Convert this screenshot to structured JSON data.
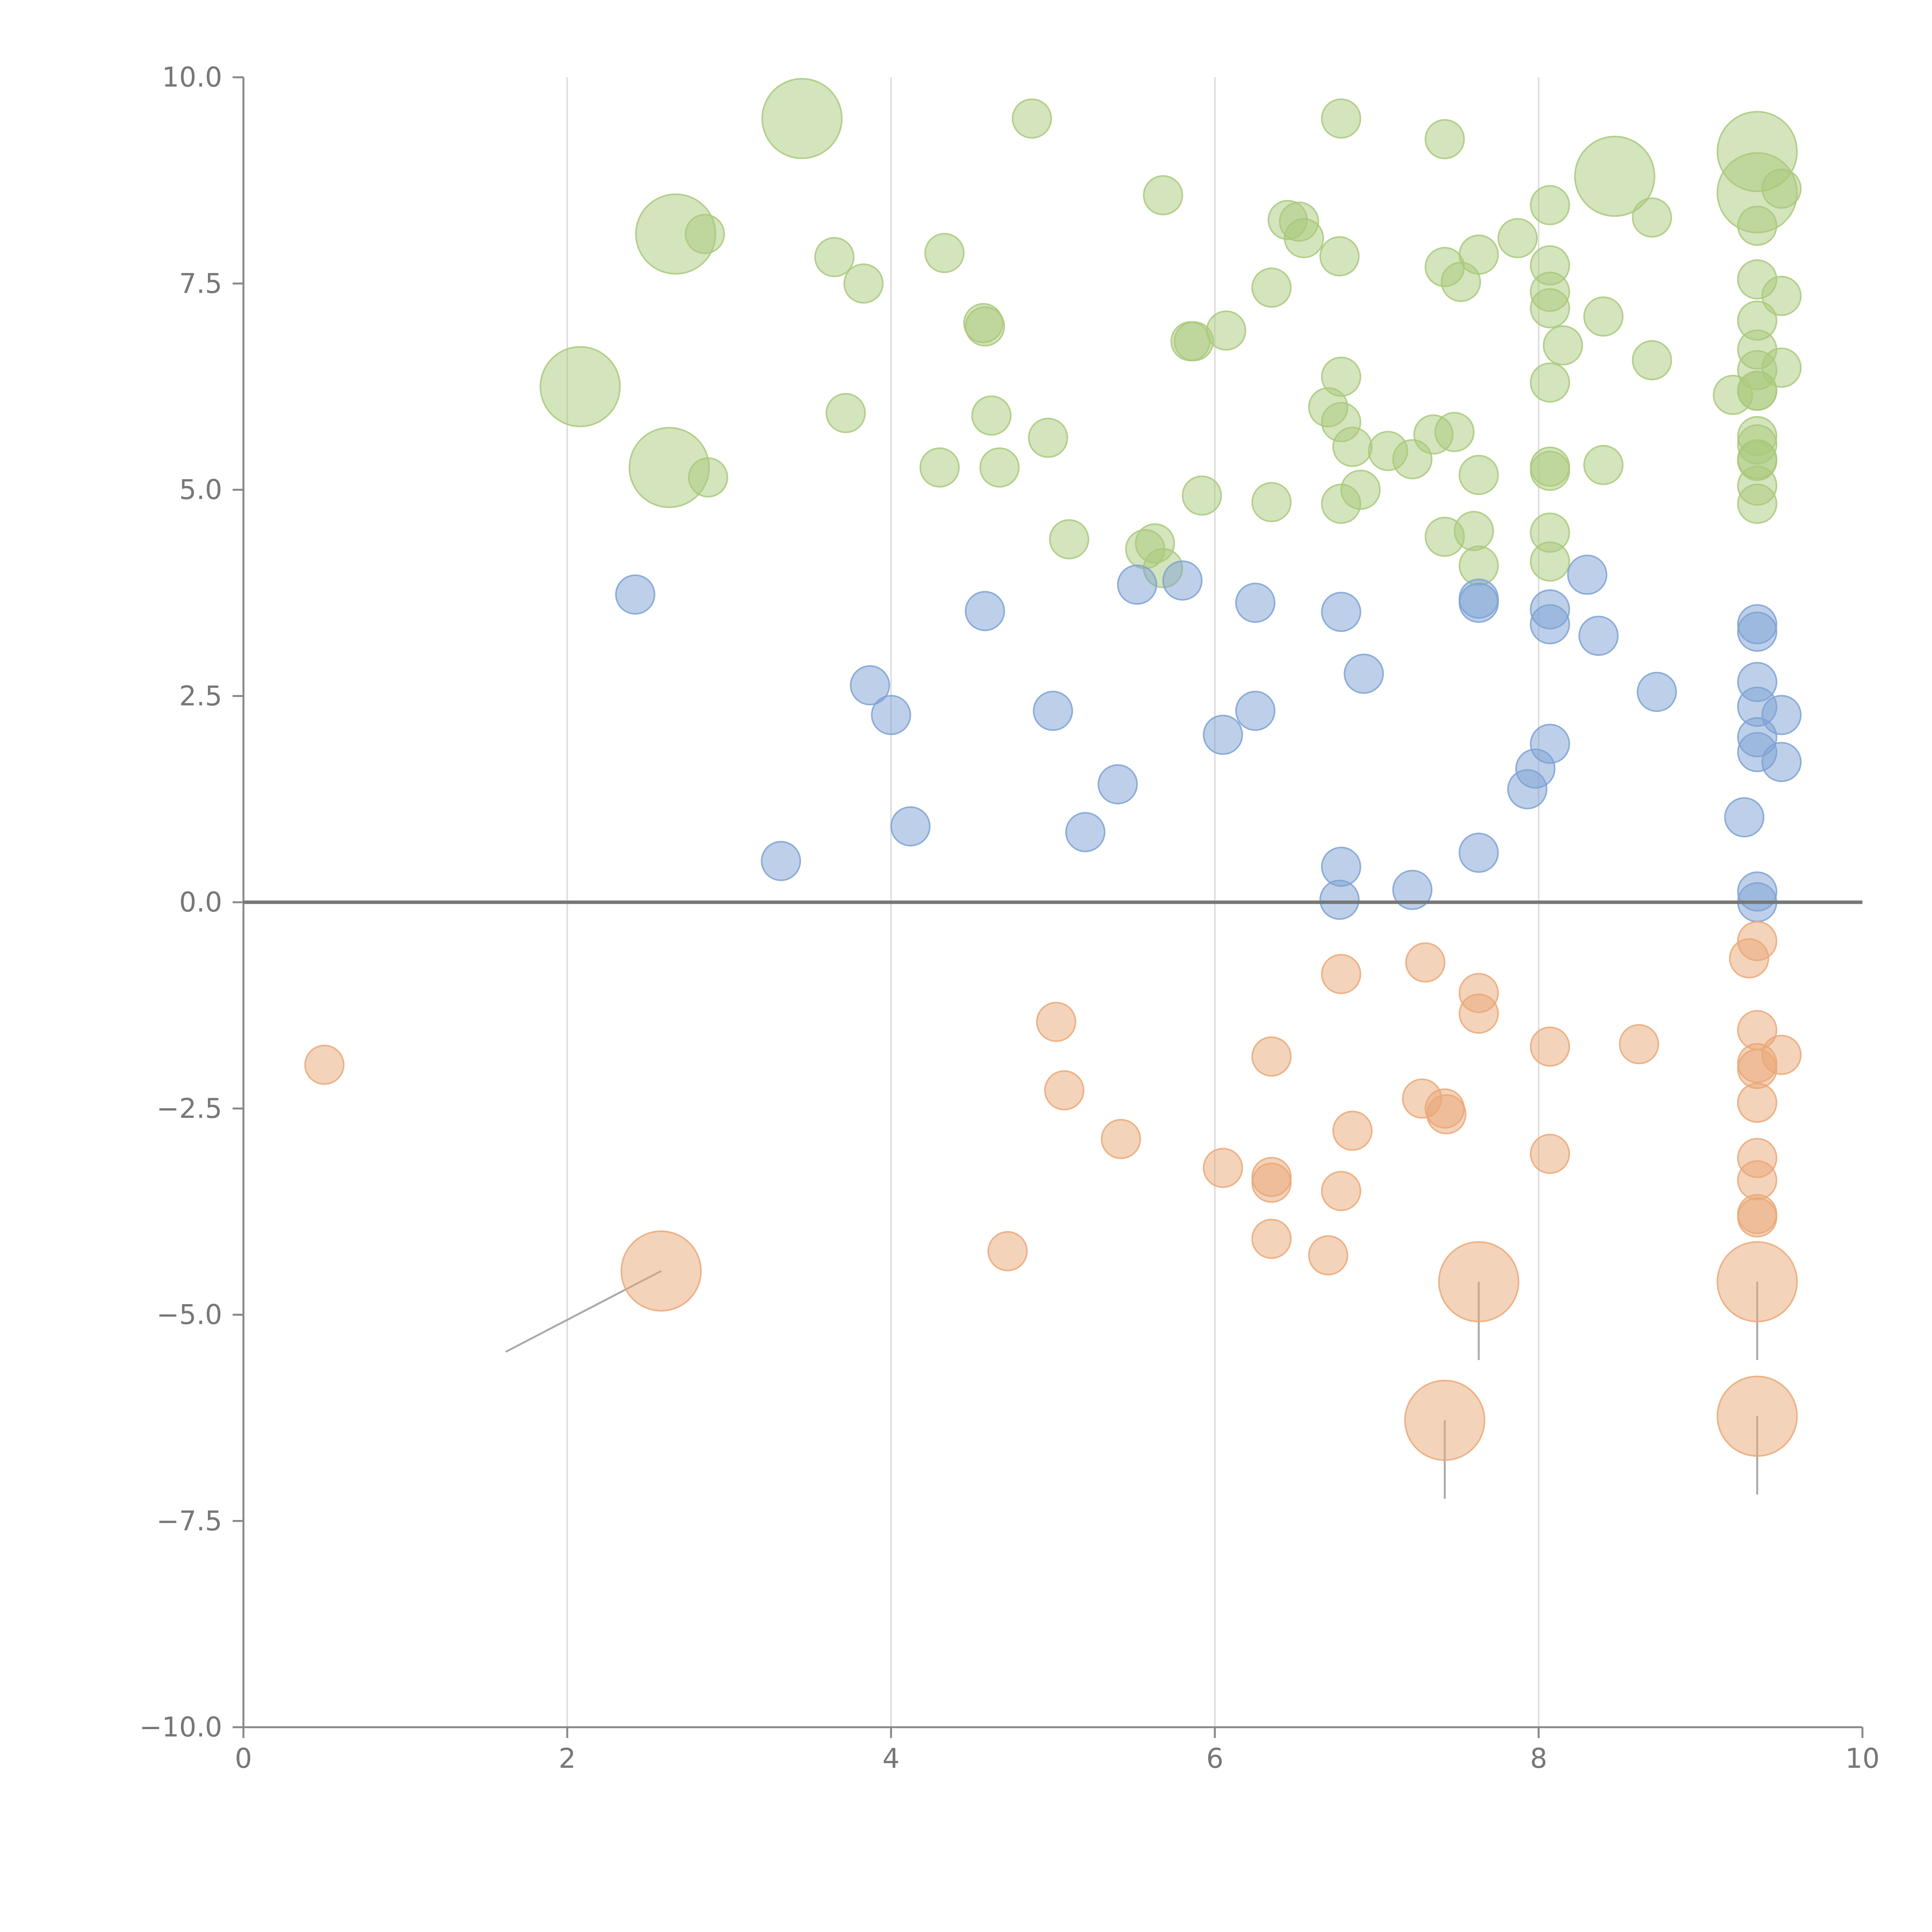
{
  "chart_data": {
    "type": "scatter",
    "title": "",
    "xlabel": "",
    "ylabel": "",
    "xlim": [
      0,
      10
    ],
    "ylim": [
      -10,
      10
    ],
    "x_ticks": [
      "0",
      "2",
      "4",
      "6",
      "8",
      "10"
    ],
    "y_ticks": [
      "−10.0",
      "−7.5",
      "−5.0",
      "−2.5",
      "0.0",
      "2.5",
      "5.0",
      "7.5",
      "10.0"
    ],
    "x_tick_values": [
      0,
      2,
      4,
      6,
      8,
      10
    ],
    "y_tick_values": [
      -10,
      -7.5,
      -5,
      -2.5,
      0,
      2.5,
      5,
      7.5,
      10
    ],
    "grid": "vertical",
    "baseline_y": 0,
    "series": [
      {
        "name": "green",
        "color": "#a9c97b",
        "points": [
          {
            "x": 3.45,
            "y": 9.5,
            "s": 2
          },
          {
            "x": 4.87,
            "y": 9.5,
            "s": 1
          },
          {
            "x": 6.78,
            "y": 9.5,
            "s": 1
          },
          {
            "x": 7.42,
            "y": 9.25,
            "s": 1
          },
          {
            "x": 9.35,
            "y": 9.1,
            "s": 2
          },
          {
            "x": 8.47,
            "y": 8.8,
            "s": 2
          },
          {
            "x": 9.35,
            "y": 8.6,
            "s": 2
          },
          {
            "x": 9.5,
            "y": 8.65,
            "s": 1
          },
          {
            "x": 5.68,
            "y": 8.57,
            "s": 1
          },
          {
            "x": 8.07,
            "y": 8.45,
            "s": 1
          },
          {
            "x": 6.45,
            "y": 8.27,
            "s": 1
          },
          {
            "x": 6.52,
            "y": 8.25,
            "s": 1
          },
          {
            "x": 8.7,
            "y": 8.3,
            "s": 1
          },
          {
            "x": 9.35,
            "y": 8.2,
            "s": 1
          },
          {
            "x": 2.67,
            "y": 8.1,
            "s": 2
          },
          {
            "x": 2.85,
            "y": 8.1,
            "s": 1
          },
          {
            "x": 6.55,
            "y": 8.05,
            "s": 1
          },
          {
            "x": 7.87,
            "y": 8.05,
            "s": 1
          },
          {
            "x": 3.65,
            "y": 7.82,
            "s": 1
          },
          {
            "x": 4.33,
            "y": 7.87,
            "s": 1
          },
          {
            "x": 6.77,
            "y": 7.83,
            "s": 1
          },
          {
            "x": 7.63,
            "y": 7.85,
            "s": 1
          },
          {
            "x": 7.42,
            "y": 7.7,
            "s": 1
          },
          {
            "x": 8.07,
            "y": 7.72,
            "s": 1
          },
          {
            "x": 9.35,
            "y": 7.55,
            "s": 1
          },
          {
            "x": 3.83,
            "y": 7.5,
            "s": 1
          },
          {
            "x": 7.52,
            "y": 7.52,
            "s": 1
          },
          {
            "x": 6.35,
            "y": 7.45,
            "s": 1
          },
          {
            "x": 8.07,
            "y": 7.4,
            "s": 1
          },
          {
            "x": 9.5,
            "y": 7.35,
            "s": 1
          },
          {
            "x": 8.07,
            "y": 7.2,
            "s": 1
          },
          {
            "x": 8.4,
            "y": 7.1,
            "s": 1
          },
          {
            "x": 9.35,
            "y": 7.05,
            "s": 1
          },
          {
            "x": 4.57,
            "y": 7.02,
            "s": 1
          },
          {
            "x": 4.58,
            "y": 6.98,
            "s": 1
          },
          {
            "x": 6.07,
            "y": 6.93,
            "s": 1
          },
          {
            "x": 5.85,
            "y": 6.8,
            "s": 1
          },
          {
            "x": 5.87,
            "y": 6.8,
            "s": 1
          },
          {
            "x": 8.15,
            "y": 6.75,
            "s": 1
          },
          {
            "x": 9.35,
            "y": 6.7,
            "s": 1
          },
          {
            "x": 8.7,
            "y": 6.57,
            "s": 1
          },
          {
            "x": 9.5,
            "y": 6.48,
            "s": 1
          },
          {
            "x": 9.35,
            "y": 6.45,
            "s": 1
          },
          {
            "x": 6.78,
            "y": 6.37,
            "s": 1
          },
          {
            "x": 8.07,
            "y": 6.3,
            "s": 1
          },
          {
            "x": 2.08,
            "y": 6.25,
            "s": 2
          },
          {
            "x": 9.2,
            "y": 6.15,
            "s": 1
          },
          {
            "x": 9.35,
            "y": 6.2,
            "s": 1
          },
          {
            "x": 9.35,
            "y": 6.2,
            "s": 1
          },
          {
            "x": 6.7,
            "y": 6.0,
            "s": 1
          },
          {
            "x": 3.72,
            "y": 5.93,
            "s": 1
          },
          {
            "x": 4.62,
            "y": 5.9,
            "s": 1
          },
          {
            "x": 6.78,
            "y": 5.82,
            "s": 1
          },
          {
            "x": 7.48,
            "y": 5.7,
            "s": 1
          },
          {
            "x": 7.35,
            "y": 5.67,
            "s": 1
          },
          {
            "x": 9.35,
            "y": 5.65,
            "s": 1
          },
          {
            "x": 4.97,
            "y": 5.63,
            "s": 1
          },
          {
            "x": 9.35,
            "y": 5.55,
            "s": 1
          },
          {
            "x": 6.85,
            "y": 5.52,
            "s": 1
          },
          {
            "x": 7.07,
            "y": 5.47,
            "s": 1
          },
          {
            "x": 7.22,
            "y": 5.37,
            "s": 1
          },
          {
            "x": 9.35,
            "y": 5.37,
            "s": 1
          },
          {
            "x": 9.35,
            "y": 5.35,
            "s": 1
          },
          {
            "x": 8.4,
            "y": 5.3,
            "s": 1
          },
          {
            "x": 4.3,
            "y": 5.27,
            "s": 1
          },
          {
            "x": 4.67,
            "y": 5.27,
            "s": 1
          },
          {
            "x": 2.63,
            "y": 5.27,
            "s": 2
          },
          {
            "x": 8.07,
            "y": 5.28,
            "s": 1
          },
          {
            "x": 8.07,
            "y": 5.23,
            "s": 1
          },
          {
            "x": 2.87,
            "y": 5.15,
            "s": 1
          },
          {
            "x": 7.63,
            "y": 5.18,
            "s": 1
          },
          {
            "x": 9.35,
            "y": 5.05,
            "s": 1
          },
          {
            "x": 6.9,
            "y": 5.0,
            "s": 1
          },
          {
            "x": 5.92,
            "y": 4.93,
            "s": 1
          },
          {
            "x": 6.35,
            "y": 4.85,
            "s": 1
          },
          {
            "x": 6.78,
            "y": 4.83,
            "s": 1
          },
          {
            "x": 9.35,
            "y": 4.83,
            "s": 1
          },
          {
            "x": 7.6,
            "y": 4.5,
            "s": 1
          },
          {
            "x": 8.07,
            "y": 4.48,
            "s": 1
          },
          {
            "x": 7.42,
            "y": 4.43,
            "s": 1
          },
          {
            "x": 5.1,
            "y": 4.4,
            "s": 1
          },
          {
            "x": 5.63,
            "y": 4.35,
            "s": 1
          },
          {
            "x": 5.57,
            "y": 4.28,
            "s": 1
          },
          {
            "x": 8.07,
            "y": 4.13,
            "s": 1
          },
          {
            "x": 7.63,
            "y": 4.08,
            "s": 1
          },
          {
            "x": 5.68,
            "y": 4.05,
            "s": 1
          }
        ]
      },
      {
        "name": "blue",
        "color": "#7ea2d4",
        "points": [
          {
            "x": 8.3,
            "y": 3.97,
            "s": 1
          },
          {
            "x": 5.52,
            "y": 3.85,
            "s": 1
          },
          {
            "x": 5.8,
            "y": 3.9,
            "s": 1
          },
          {
            "x": 2.42,
            "y": 3.73,
            "s": 1
          },
          {
            "x": 7.63,
            "y": 3.68,
            "s": 1
          },
          {
            "x": 7.63,
            "y": 3.63,
            "s": 1
          },
          {
            "x": 6.25,
            "y": 3.63,
            "s": 1
          },
          {
            "x": 4.58,
            "y": 3.53,
            "s": 1
          },
          {
            "x": 6.78,
            "y": 3.52,
            "s": 1
          },
          {
            "x": 8.07,
            "y": 3.55,
            "s": 1
          },
          {
            "x": 8.07,
            "y": 3.37,
            "s": 1
          },
          {
            "x": 9.35,
            "y": 3.37,
            "s": 1
          },
          {
            "x": 9.35,
            "y": 3.28,
            "s": 1
          },
          {
            "x": 8.37,
            "y": 3.23,
            "s": 1
          },
          {
            "x": 6.92,
            "y": 2.77,
            "s": 1
          },
          {
            "x": 9.35,
            "y": 2.67,
            "s": 1
          },
          {
            "x": 3.87,
            "y": 2.63,
            "s": 1
          },
          {
            "x": 8.73,
            "y": 2.55,
            "s": 1
          },
          {
            "x": 9.35,
            "y": 2.37,
            "s": 1
          },
          {
            "x": 5.0,
            "y": 2.32,
            "s": 1
          },
          {
            "x": 6.25,
            "y": 2.32,
            "s": 1
          },
          {
            "x": 9.5,
            "y": 2.27,
            "s": 1
          },
          {
            "x": 4.0,
            "y": 2.27,
            "s": 1
          },
          {
            "x": 6.05,
            "y": 2.03,
            "s": 1
          },
          {
            "x": 9.35,
            "y": 2.0,
            "s": 1
          },
          {
            "x": 8.07,
            "y": 1.92,
            "s": 1
          },
          {
            "x": 9.35,
            "y": 1.82,
            "s": 1
          },
          {
            "x": 9.5,
            "y": 1.7,
            "s": 1
          },
          {
            "x": 7.98,
            "y": 1.62,
            "s": 1
          },
          {
            "x": 5.4,
            "y": 1.43,
            "s": 1
          },
          {
            "x": 7.93,
            "y": 1.37,
            "s": 1
          },
          {
            "x": 9.27,
            "y": 1.03,
            "s": 1
          },
          {
            "x": 4.12,
            "y": 0.92,
            "s": 1
          },
          {
            "x": 5.2,
            "y": 0.85,
            "s": 1
          },
          {
            "x": 7.63,
            "y": 0.6,
            "s": 1
          },
          {
            "x": 3.32,
            "y": 0.5,
            "s": 1
          },
          {
            "x": 6.78,
            "y": 0.43,
            "s": 1
          },
          {
            "x": 7.22,
            "y": 0.15,
            "s": 1
          },
          {
            "x": 9.35,
            "y": 0.13,
            "s": 1
          },
          {
            "x": 6.77,
            "y": 0.03,
            "s": 1
          },
          {
            "x": 9.35,
            "y": 0.0,
            "s": 1
          }
        ]
      },
      {
        "name": "orange",
        "color": "#eaa877",
        "points": [
          {
            "x": 9.35,
            "y": -0.47,
            "s": 1
          },
          {
            "x": 9.3,
            "y": -0.68,
            "s": 1
          },
          {
            "x": 7.3,
            "y": -0.73,
            "s": 1
          },
          {
            "x": 6.78,
            "y": -0.87,
            "s": 1
          },
          {
            "x": 7.63,
            "y": -1.1,
            "s": 1
          },
          {
            "x": 7.63,
            "y": -1.35,
            "s": 1
          },
          {
            "x": 5.02,
            "y": -1.45,
            "s": 1
          },
          {
            "x": 9.35,
            "y": -1.55,
            "s": 1
          },
          {
            "x": 8.62,
            "y": -1.72,
            "s": 1
          },
          {
            "x": 8.07,
            "y": -1.75,
            "s": 1
          },
          {
            "x": 9.5,
            "y": -1.85,
            "s": 1
          },
          {
            "x": 6.35,
            "y": -1.87,
            "s": 1
          },
          {
            "x": 9.35,
            "y": -1.95,
            "s": 1
          },
          {
            "x": 0.5,
            "y": -1.97,
            "s": 1
          },
          {
            "x": 9.35,
            "y": -2.02,
            "s": 1
          },
          {
            "x": 5.07,
            "y": -2.28,
            "s": 1
          },
          {
            "x": 7.28,
            "y": -2.38,
            "s": 1
          },
          {
            "x": 9.35,
            "y": -2.43,
            "s": 1
          },
          {
            "x": 7.42,
            "y": -2.5,
            "s": 1
          },
          {
            "x": 7.43,
            "y": -2.57,
            "s": 1
          },
          {
            "x": 6.85,
            "y": -2.77,
            "s": 1
          },
          {
            "x": 5.42,
            "y": -2.87,
            "s": 1
          },
          {
            "x": 8.07,
            "y": -3.05,
            "s": 1
          },
          {
            "x": 9.35,
            "y": -3.1,
            "s": 1
          },
          {
            "x": 6.05,
            "y": -3.22,
            "s": 1
          },
          {
            "x": 6.35,
            "y": -3.33,
            "s": 1
          },
          {
            "x": 6.35,
            "y": -3.4,
            "s": 1
          },
          {
            "x": 9.35,
            "y": -3.37,
            "s": 1
          },
          {
            "x": 6.78,
            "y": -3.5,
            "s": 1
          },
          {
            "x": 9.35,
            "y": -3.78,
            "s": 1
          },
          {
            "x": 9.35,
            "y": -3.82,
            "s": 1
          },
          {
            "x": 6.35,
            "y": -4.08,
            "s": 1
          },
          {
            "x": 4.72,
            "y": -4.23,
            "s": 1
          },
          {
            "x": 6.7,
            "y": -4.28,
            "s": 1
          },
          {
            "x": 2.58,
            "y": -4.47,
            "s": 2
          },
          {
            "x": 7.63,
            "y": -4.6,
            "s": 2
          },
          {
            "x": 9.35,
            "y": -4.6,
            "s": 2
          },
          {
            "x": 7.42,
            "y": -6.28,
            "s": 2
          },
          {
            "x": 9.35,
            "y": -6.23,
            "s": 2
          }
        ]
      }
    ],
    "annotations": [
      {
        "x": 2.58,
        "y": -4.47,
        "tx": 1.62,
        "ty": -5.45
      },
      {
        "x": 7.63,
        "y": -4.6,
        "tx": 7.63,
        "ty": -5.55
      },
      {
        "x": 9.35,
        "y": -4.6,
        "tx": 9.35,
        "ty": -5.55
      },
      {
        "x": 7.42,
        "y": -6.28,
        "tx": 7.42,
        "ty": -7.23
      },
      {
        "x": 9.35,
        "y": -6.23,
        "tx": 9.35,
        "ty": -7.18
      }
    ]
  }
}
